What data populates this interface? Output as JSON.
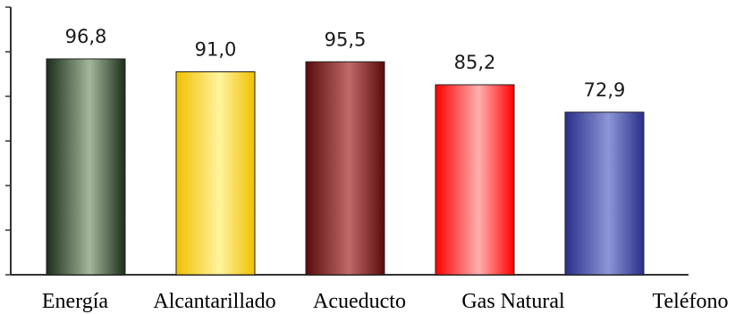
{
  "chart_data": {
    "type": "bar",
    "categories": [
      "Energía",
      "Alcantarillado",
      "Acueducto",
      "Gas Natural",
      "Teléfono"
    ],
    "values": [
      96.8,
      91.0,
      95.5,
      85.2,
      72.9
    ],
    "value_labels": [
      "96,8",
      "91,0",
      "95,5",
      "85,2",
      "72,9"
    ],
    "title": "",
    "xlabel": "",
    "ylabel": "",
    "ylim": [
      0,
      120
    ],
    "grid": false,
    "legend": "none",
    "colors": {
      "Energía": {
        "dark": "#1c2e1c",
        "light": "#a3b79a"
      },
      "Alcantarillado": {
        "dark": "#f0c000",
        "light": "#fff3a0"
      },
      "Acueducto": {
        "dark": "#5a0a0a",
        "light": "#c06a6a"
      },
      "Gas Natural": {
        "dark": "#ff0000",
        "light": "#ffb0b0"
      },
      "Teléfono": {
        "dark": "#2a2f8a",
        "light": "#8c96d6"
      }
    }
  }
}
